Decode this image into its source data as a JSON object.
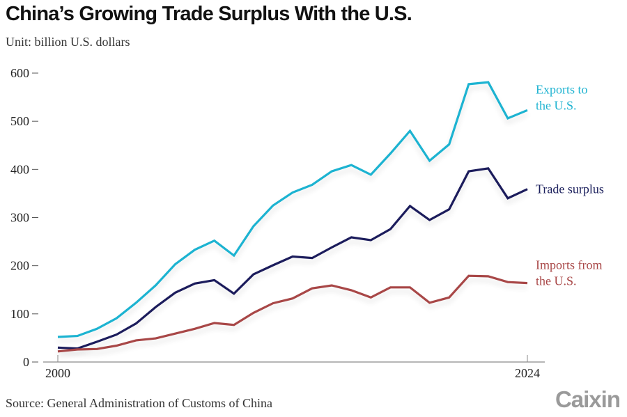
{
  "chart_data": {
    "type": "line",
    "title": "China’s Growing Trade Surplus With the U.S.",
    "subtitle": "Unit: billion U.S. dollars",
    "source": "Source: General Administration of Customs of China",
    "brand": "Caixin",
    "xlabel": "",
    "ylabel": "",
    "x": [
      2000,
      2001,
      2002,
      2003,
      2004,
      2005,
      2006,
      2007,
      2008,
      2009,
      2010,
      2011,
      2012,
      2013,
      2014,
      2015,
      2016,
      2017,
      2018,
      2019,
      2020,
      2021,
      2022,
      2023,
      2024
    ],
    "x_tick_labels": [
      "2000",
      "2024"
    ],
    "xlim": [
      2000,
      2024
    ],
    "y_ticks": [
      0,
      100,
      200,
      300,
      400,
      500,
      600
    ],
    "y_tick_labels": [
      "0",
      "100",
      "200",
      "300",
      "400",
      "500",
      "600"
    ],
    "ylim": [
      0,
      600
    ],
    "grid": false,
    "legend": "direct-labels-right",
    "series": [
      {
        "name": "Exports to the U.S.",
        "label_lines": [
          "Exports to",
          "the U.S."
        ],
        "color": "#1fb3d1",
        "values": [
          52,
          54,
          69,
          91,
          123,
          159,
          203,
          233,
          252,
          221,
          282,
          325,
          352,
          368,
          396,
          409,
          389,
          433,
          480,
          418,
          452,
          577,
          581,
          506,
          523
        ]
      },
      {
        "name": "Trade surplus",
        "label_lines": [
          "Trade surplus"
        ],
        "color": "#1b1f5c",
        "values": [
          30,
          28,
          42,
          57,
          80,
          114,
          144,
          163,
          170,
          142,
          182,
          201,
          219,
          216,
          238,
          259,
          253,
          276,
          324,
          295,
          317,
          396,
          402,
          340,
          359
        ]
      },
      {
        "name": "Imports from the U.S.",
        "label_lines": [
          "Imports from",
          "the U.S."
        ],
        "color": "#a84646",
        "values": [
          22,
          26,
          27,
          34,
          45,
          49,
          59,
          69,
          81,
          77,
          102,
          122,
          132,
          153,
          159,
          149,
          134,
          155,
          155,
          123,
          134,
          179,
          178,
          166,
          164
        ]
      }
    ]
  }
}
